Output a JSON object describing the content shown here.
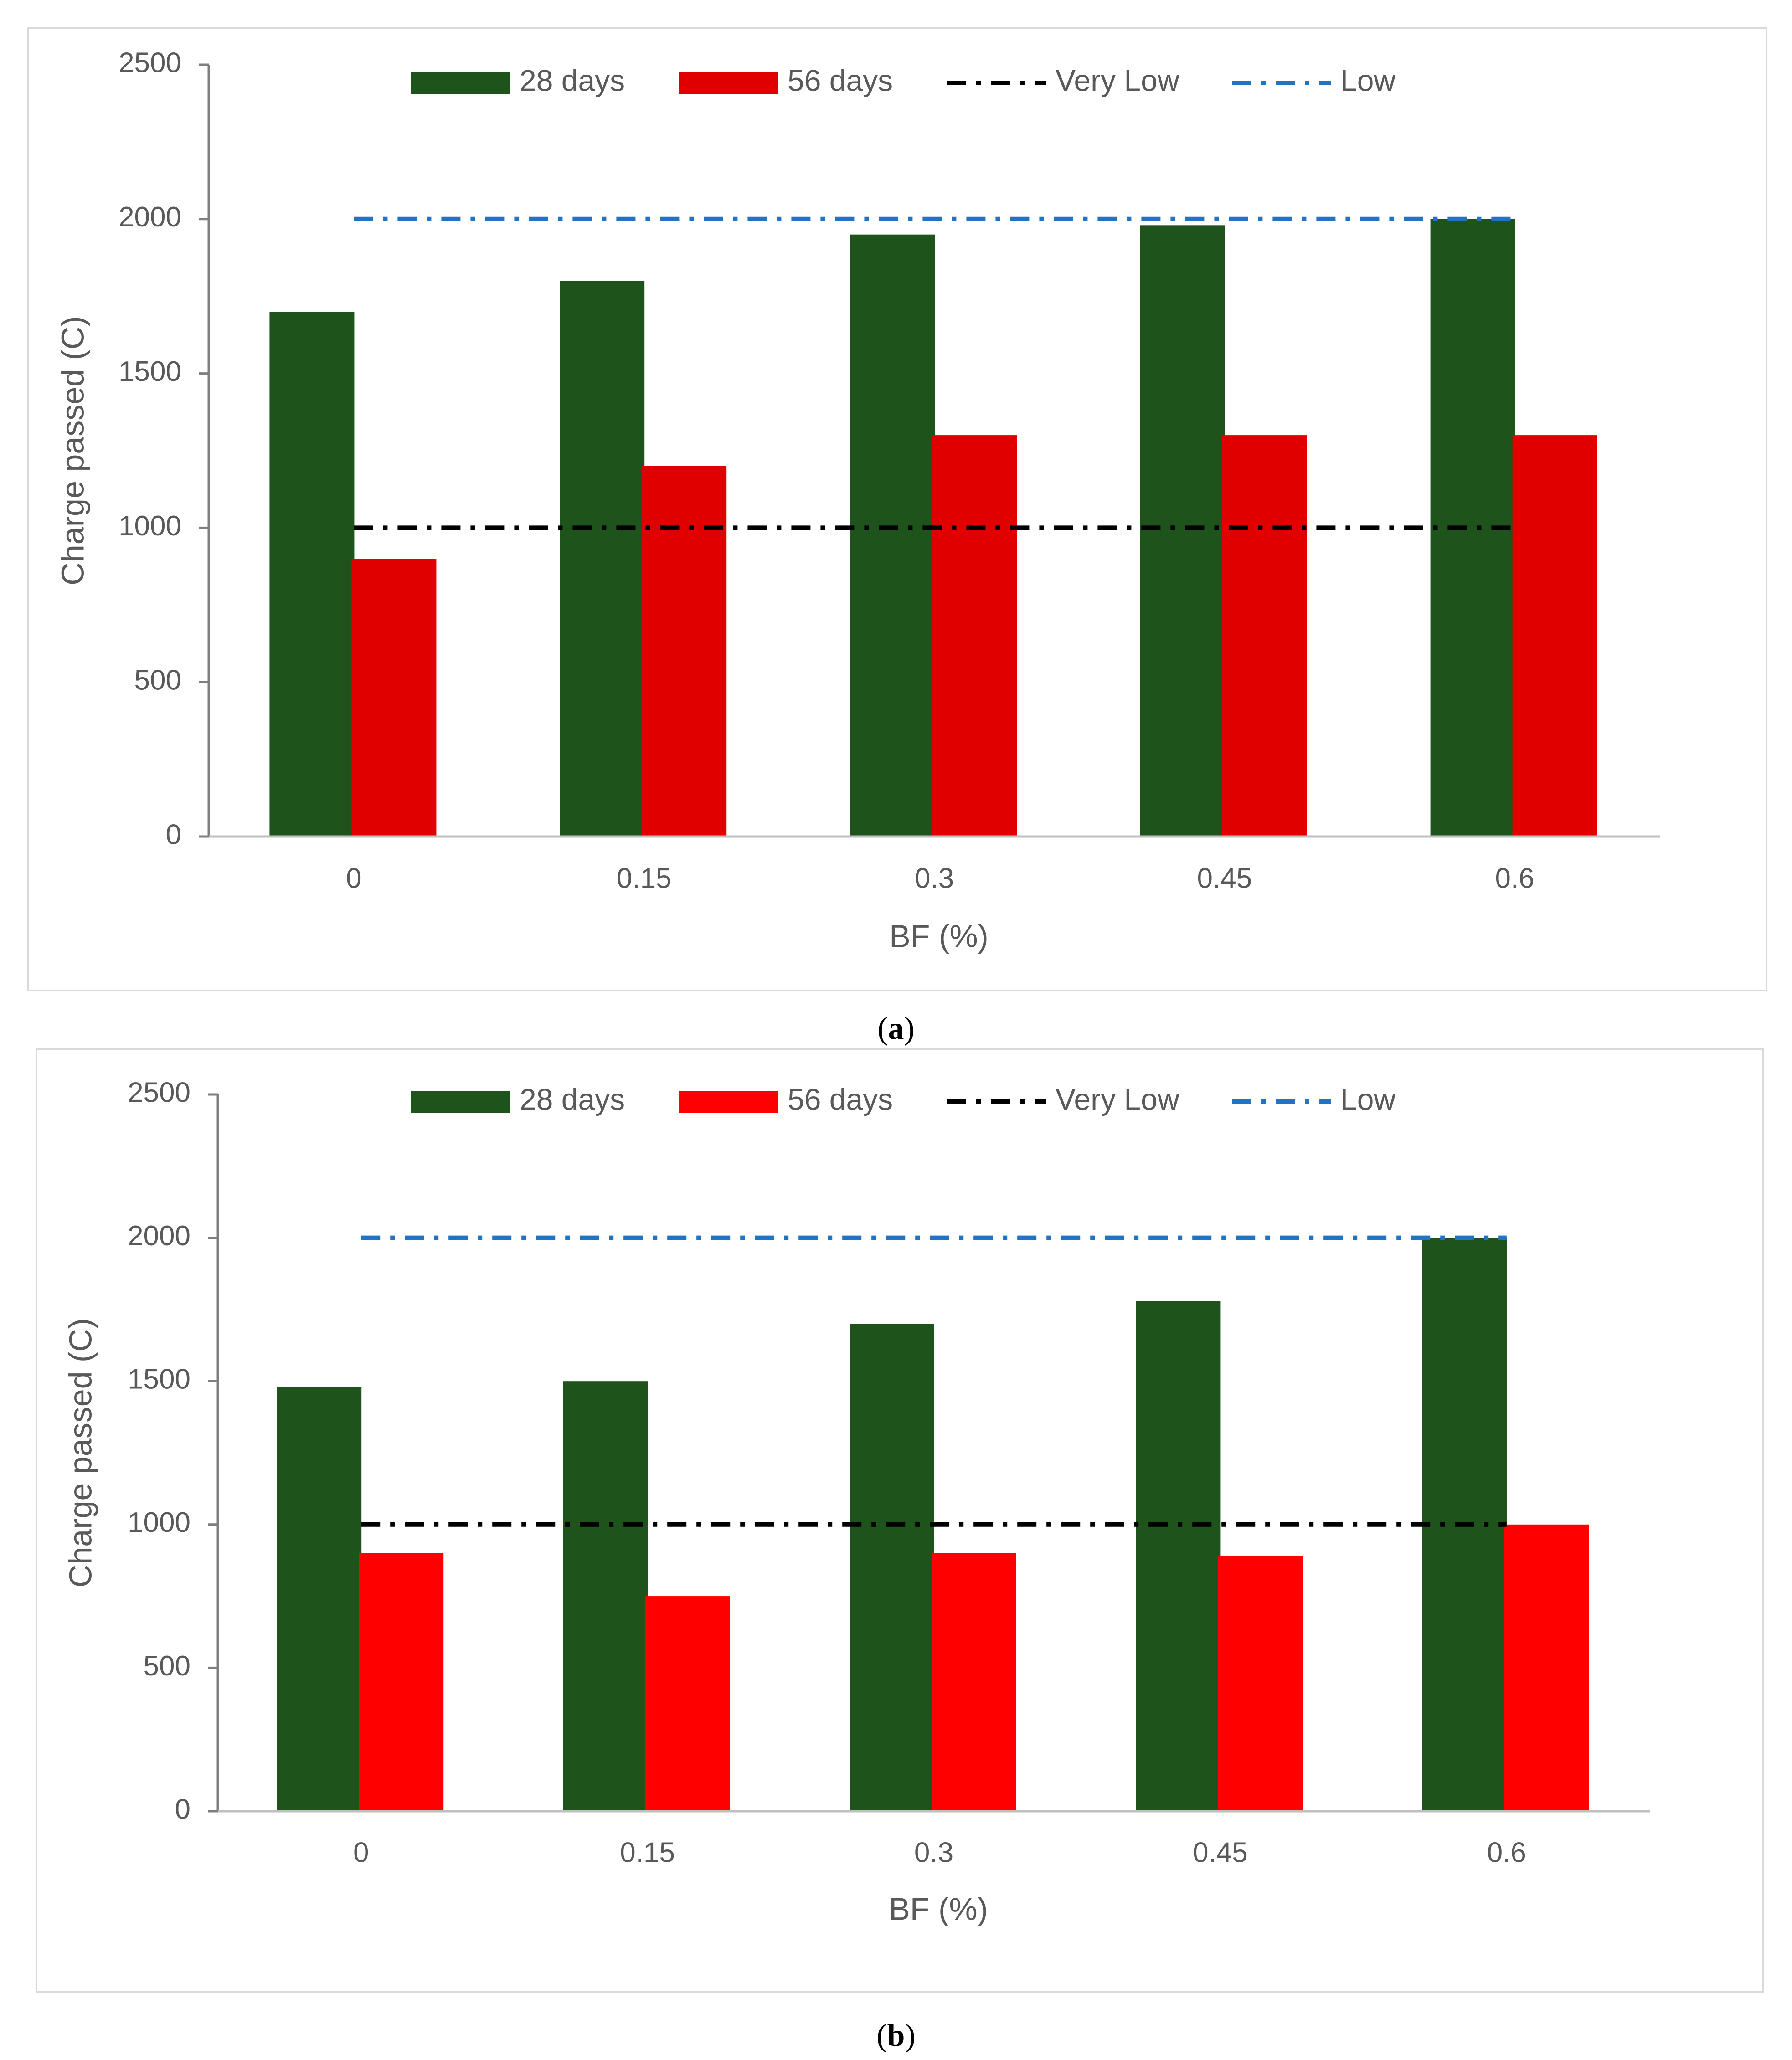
{
  "colors": {
    "days28": "#1f531c",
    "days56_a": "#e00000",
    "days56_b": "#ff0000",
    "very_low": "#000000",
    "low": "#1f74c6",
    "axis": "#7f7f7f",
    "text": "#595959",
    "frame": "#d9d9d9"
  },
  "chart_data": [
    {
      "panel": "a",
      "caption": {
        "open": "(",
        "letter": "a",
        "close": ")"
      },
      "type": "bar",
      "xlabel": "BF (%)",
      "ylabel": "Charge passed (C)",
      "categories": [
        "0",
        "0.15",
        "0.3",
        "0.45",
        "0.6"
      ],
      "ylim": [
        0,
        2500
      ],
      "yticks": [
        "0",
        "500",
        "1000",
        "1500",
        "2000",
        "2500"
      ],
      "series": [
        {
          "name": "28 days",
          "kind": "bar",
          "values": [
            1700,
            1800,
            1950,
            1980,
            2000
          ]
        },
        {
          "name": "56 days",
          "kind": "bar",
          "values": [
            900,
            1200,
            1300,
            1300,
            1300
          ]
        },
        {
          "name": "Very Low",
          "kind": "line",
          "values": [
            1000,
            1000,
            1000,
            1000,
            1000
          ]
        },
        {
          "name": "Low",
          "kind": "line",
          "values": [
            2000,
            2000,
            2000,
            2000,
            2000
          ]
        }
      ],
      "legend": "top"
    },
    {
      "panel": "b",
      "caption": {
        "open": "(",
        "letter": "b",
        "close": ")"
      },
      "type": "bar",
      "xlabel": "BF (%)",
      "ylabel": "Charge passed (C)",
      "categories": [
        "0",
        "0.15",
        "0.3",
        "0.45",
        "0.6"
      ],
      "ylim": [
        0,
        2500
      ],
      "yticks": [
        "0",
        "500",
        "1000",
        "1500",
        "2000",
        "2500"
      ],
      "series": [
        {
          "name": "28 days",
          "kind": "bar",
          "values": [
            1480,
            1500,
            1700,
            1780,
            2000
          ]
        },
        {
          "name": "56 days",
          "kind": "bar",
          "values": [
            900,
            750,
            900,
            890,
            1000
          ]
        },
        {
          "name": "Very Low",
          "kind": "line",
          "values": [
            1000,
            1000,
            1000,
            1000,
            1000
          ]
        },
        {
          "name": "Low",
          "kind": "line",
          "values": [
            2000,
            2000,
            2000,
            2000,
            2000
          ]
        }
      ],
      "legend": "top"
    }
  ]
}
